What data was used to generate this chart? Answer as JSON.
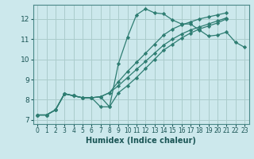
{
  "xlabel": "Humidex (Indice chaleur)",
  "background_color": "#cce8ec",
  "grid_color": "#aacccc",
  "line_color": "#2e7d72",
  "xlim": [
    -0.5,
    23.5
  ],
  "ylim": [
    6.8,
    12.7
  ],
  "xticks": [
    0,
    1,
    2,
    3,
    4,
    5,
    6,
    7,
    8,
    9,
    10,
    11,
    12,
    13,
    14,
    15,
    16,
    17,
    18,
    19,
    20,
    21,
    22,
    23
  ],
  "yticks": [
    7,
    8,
    9,
    10,
    11,
    12
  ],
  "series": [
    [
      7.25,
      7.25,
      7.5,
      8.3,
      8.2,
      8.1,
      8.1,
      8.15,
      7.65,
      9.8,
      11.1,
      12.2,
      12.5,
      12.3,
      12.25,
      11.95,
      11.75,
      11.75,
      11.45,
      11.15,
      11.2,
      11.35,
      10.85,
      10.6
    ],
    [
      7.25,
      7.25,
      7.5,
      8.3,
      8.2,
      8.1,
      8.1,
      8.15,
      8.35,
      8.9,
      9.4,
      9.85,
      10.3,
      10.75,
      11.2,
      11.5,
      11.7,
      11.85,
      12.0,
      12.1,
      12.2,
      12.3,
      null,
      null
    ],
    [
      7.25,
      7.25,
      7.5,
      8.3,
      8.2,
      8.1,
      8.1,
      7.65,
      7.65,
      8.35,
      8.7,
      9.1,
      9.55,
      10.0,
      10.45,
      10.75,
      11.05,
      11.3,
      11.5,
      11.65,
      11.8,
      12.0,
      null,
      null
    ],
    [
      7.25,
      7.25,
      7.5,
      8.3,
      8.2,
      8.1,
      8.1,
      8.15,
      8.35,
      8.7,
      9.1,
      9.5,
      9.9,
      10.3,
      10.7,
      11.0,
      11.25,
      11.45,
      11.6,
      11.75,
      11.9,
      12.05,
      null,
      null
    ]
  ]
}
